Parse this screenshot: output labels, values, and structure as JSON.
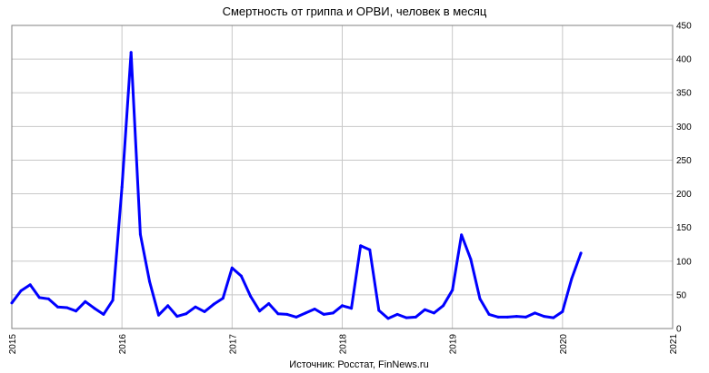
{
  "chart_data": {
    "type": "line",
    "title": "Смертность от гриппа и ОРВИ, человек в месяц",
    "source_note": "Источник: Росстат, FinNews.ru",
    "xlabel": "",
    "ylabel": "",
    "x_ticks": [
      "2015",
      "2016",
      "2017",
      "2018",
      "2019",
      "2020",
      "2021"
    ],
    "y_ticks": [
      "0",
      "50",
      "100",
      "150",
      "200",
      "250",
      "300",
      "350",
      "400",
      "450"
    ],
    "xlim": [
      2015,
      2021
    ],
    "ylim": [
      0,
      450
    ],
    "y_axis_side": "right",
    "grid": true,
    "legend": "none",
    "colors": {
      "line": "#0000ff",
      "grid": "#c8c8c8",
      "axis": "#808080"
    },
    "series": [
      {
        "x": [
          2015.0,
          2015.083,
          2015.167,
          2015.25,
          2015.333,
          2015.417,
          2015.5,
          2015.583,
          2015.667,
          2015.75,
          2015.833,
          2015.917,
          2016.0,
          2016.083,
          2016.167,
          2016.25,
          2016.333,
          2016.417,
          2016.5,
          2016.583,
          2016.667,
          2016.75,
          2016.833,
          2016.917,
          2017.0,
          2017.083,
          2017.167,
          2017.25,
          2017.333,
          2017.417,
          2017.5,
          2017.583,
          2017.667,
          2017.75,
          2017.833,
          2017.917,
          2018.0,
          2018.083,
          2018.167,
          2018.25,
          2018.333,
          2018.417,
          2018.5,
          2018.583,
          2018.667,
          2018.75,
          2018.833,
          2018.917,
          2019.0,
          2019.083,
          2019.167,
          2019.25,
          2019.333,
          2019.417,
          2019.5,
          2019.583,
          2019.667,
          2019.75,
          2019.833,
          2019.917,
          2020.0,
          2020.083,
          2020.167
        ],
        "values": [
          38,
          56,
          65,
          46,
          44,
          32,
          31,
          26,
          40,
          30,
          21,
          42,
          210,
          410,
          140,
          70,
          20,
          34,
          18,
          22,
          32,
          25,
          36,
          45,
          90,
          78,
          48,
          26,
          37,
          22,
          21,
          17,
          23,
          29,
          21,
          23,
          34,
          30,
          123,
          117,
          27,
          15,
          21,
          16,
          17,
          28,
          23,
          34,
          57,
          139,
          103,
          44,
          21,
          17,
          17,
          18,
          17,
          23,
          18,
          16,
          25,
          74,
          112
        ]
      }
    ]
  }
}
